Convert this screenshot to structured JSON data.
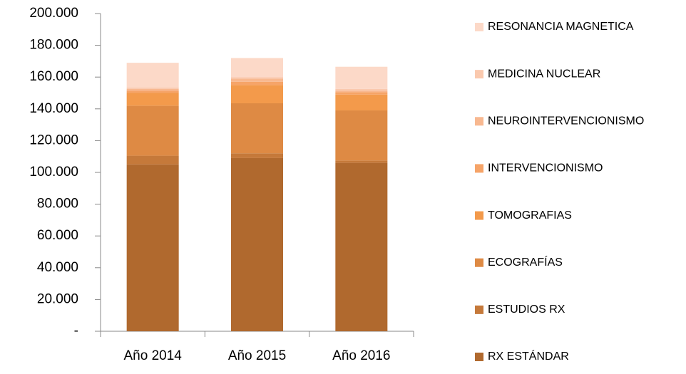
{
  "chart_data": {
    "type": "stacked_bar",
    "categories": [
      "Año 2014",
      "Año 2015",
      "Año 2016"
    ],
    "series": [
      {
        "name": "RX ESTÁNDAR",
        "color": "#b0692e",
        "values": [
          105000,
          109000,
          106000
        ]
      },
      {
        "name": "ESTUDIOS RX",
        "color": "#c5793a",
        "values": [
          5500,
          3000,
          1500
        ]
      },
      {
        "name": "ECOGRAFÍAS",
        "color": "#de8a44",
        "values": [
          31500,
          31500,
          31500
        ]
      },
      {
        "name": "TOMOGRAFIAS",
        "color": "#f39a4b",
        "values": [
          8000,
          11500,
          10000
        ]
      },
      {
        "name": "INTERVENCIONISMO",
        "color": "#f6a468",
        "values": [
          1500,
          2000,
          1500
        ]
      },
      {
        "name": "NEUROINTERVENCIONISMO",
        "color": "#f8b890",
        "values": [
          1000,
          2000,
          1000
        ]
      },
      {
        "name": "MEDICINA NUCLEAR",
        "color": "#fac9ae",
        "values": [
          1000,
          1000,
          1000
        ]
      },
      {
        "name": "RESONANCIA MAGNETICA",
        "color": "#fcd9c8",
        "values": [
          15500,
          12000,
          14000
        ]
      }
    ],
    "ylim": [
      0,
      200000
    ],
    "yticks": [
      {
        "value": 0,
        "label": "-"
      },
      {
        "value": 20000,
        "label": "20.000"
      },
      {
        "value": 40000,
        "label": "40.000"
      },
      {
        "value": 60000,
        "label": "60.000"
      },
      {
        "value": 80000,
        "label": "80.000"
      },
      {
        "value": 100000,
        "label": "100.000"
      },
      {
        "value": 120000,
        "label": "120.000"
      },
      {
        "value": 140000,
        "label": "140.000"
      },
      {
        "value": 160000,
        "label": "160.000"
      },
      {
        "value": 180000,
        "label": "180.000"
      },
      {
        "value": 200000,
        "label": "200.000"
      }
    ],
    "legend": "right"
  }
}
